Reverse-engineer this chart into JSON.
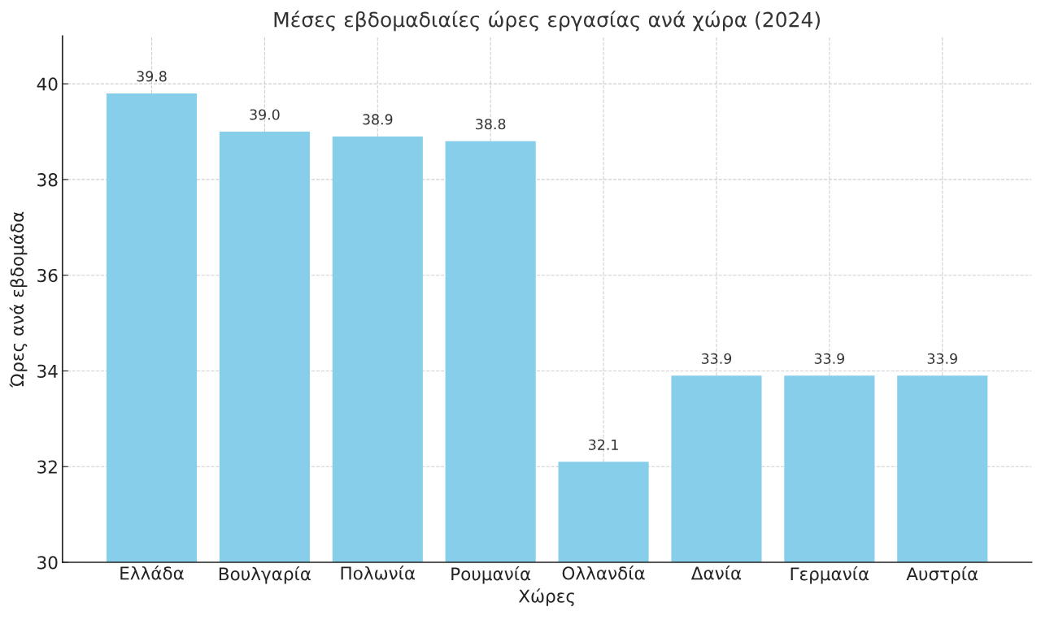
{
  "chart_data": {
    "type": "bar",
    "title": "Μέσες εβδομαδιαίες ώρες εργασίας ανά χώρα (2024)",
    "xlabel": "Χώρες",
    "ylabel": "Ώρες ανά εβδομάδα",
    "categories": [
      "Ελλάδα",
      "Βουλγαρία",
      "Πολωνία",
      "Ρουμανία",
      "Ολλανδία",
      "Δανία",
      "Γερμανία",
      "Αυστρία"
    ],
    "values": [
      39.8,
      39.0,
      38.9,
      38.8,
      32.1,
      33.9,
      33.9,
      33.9
    ],
    "value_labels": [
      "39.8",
      "39.0",
      "38.9",
      "38.8",
      "32.1",
      "33.9",
      "33.9",
      "33.9"
    ],
    "color": "#87ceeb",
    "ylim": [
      30,
      41
    ],
    "yticks": [
      30,
      32,
      34,
      36,
      38,
      40
    ],
    "grid": true
  }
}
